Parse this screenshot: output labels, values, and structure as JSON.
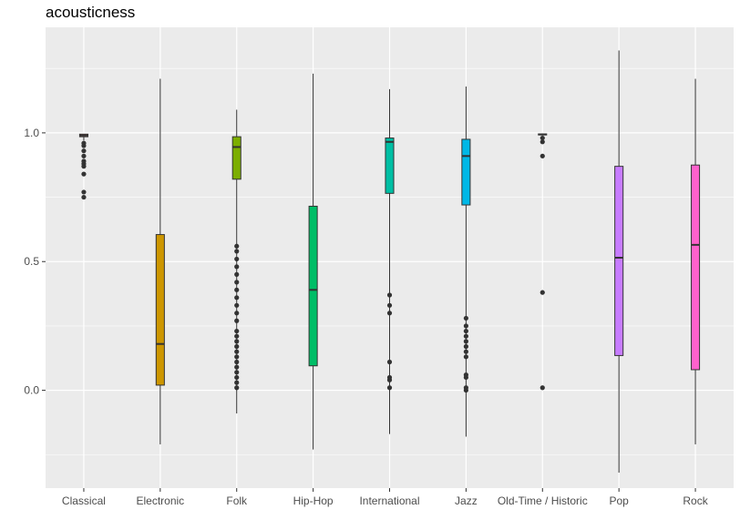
{
  "chart_data": {
    "type": "boxplot",
    "title": "acousticness",
    "xlabel": "",
    "ylabel": "",
    "ylim": [
      -0.38,
      1.41
    ],
    "y_ticks": [
      0.0,
      0.5,
      1.0
    ],
    "y_tick_labels": [
      "0.0",
      "0.5",
      "1.0"
    ],
    "grid": true,
    "legend": "none",
    "categories": [
      "Classical",
      "Electronic",
      "Folk",
      "Hip-Hop",
      "International",
      "Jazz",
      "Old-Time / Historic",
      "Pop",
      "Rock"
    ],
    "series": [
      {
        "color": "#F8766D",
        "q1": 0.985,
        "median": 0.99,
        "q3": 0.995,
        "whisker_low": 0.97,
        "whisker_high": 0.995,
        "outliers": [
          0.75,
          0.77,
          0.84,
          0.87,
          0.88,
          0.89,
          0.91,
          0.93,
          0.95,
          0.96
        ]
      },
      {
        "color": "#CD9600",
        "q1": 0.02,
        "median": 0.18,
        "q3": 0.605,
        "whisker_low": -0.21,
        "whisker_high": 1.21,
        "outliers": []
      },
      {
        "color": "#7CAE00",
        "q1": 0.82,
        "median": 0.945,
        "q3": 0.985,
        "whisker_low": -0.09,
        "whisker_high": 1.09,
        "outliers": [
          0.01,
          0.03,
          0.05,
          0.07,
          0.09,
          0.11,
          0.13,
          0.15,
          0.17,
          0.19,
          0.21,
          0.23,
          0.27,
          0.3,
          0.33,
          0.36,
          0.39,
          0.42,
          0.45,
          0.48,
          0.51,
          0.54,
          0.56
        ]
      },
      {
        "color": "#00BE67",
        "q1": 0.095,
        "median": 0.39,
        "q3": 0.715,
        "whisker_low": -0.23,
        "whisker_high": 1.23,
        "outliers": []
      },
      {
        "color": "#00BFA4",
        "q1": 0.765,
        "median": 0.965,
        "q3": 0.98,
        "whisker_low": -0.17,
        "whisker_high": 1.17,
        "outliers": [
          0.01,
          0.04,
          0.05,
          0.11,
          0.3,
          0.33,
          0.37
        ]
      },
      {
        "color": "#00B8E7",
        "q1": 0.72,
        "median": 0.91,
        "q3": 0.975,
        "whisker_low": -0.18,
        "whisker_high": 1.18,
        "outliers": [
          0.0,
          0.01,
          0.05,
          0.06,
          0.13,
          0.15,
          0.17,
          0.19,
          0.21,
          0.23,
          0.25,
          0.28
        ]
      },
      {
        "color": "#00A9FF",
        "q1": 0.992,
        "median": 0.994,
        "q3": 0.996,
        "whisker_low": 0.99,
        "whisker_high": 0.997,
        "outliers": [
          0.01,
          0.38,
          0.91,
          0.965,
          0.98
        ]
      },
      {
        "color": "#C77CFF",
        "q1": 0.135,
        "median": 0.515,
        "q3": 0.87,
        "whisker_low": -0.32,
        "whisker_high": 1.32,
        "outliers": []
      },
      {
        "color": "#FF61CC",
        "q1": 0.08,
        "median": 0.565,
        "q3": 0.875,
        "whisker_low": -0.21,
        "whisker_high": 1.21,
        "outliers": []
      }
    ]
  }
}
